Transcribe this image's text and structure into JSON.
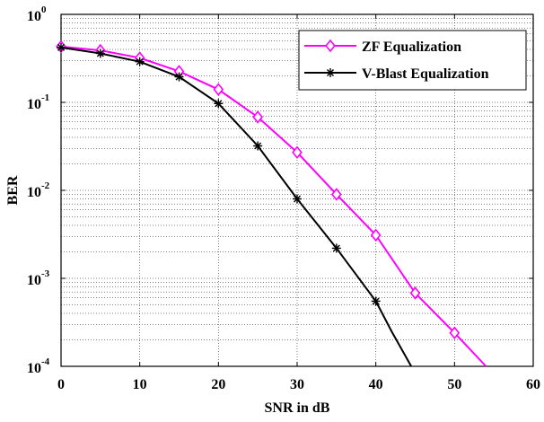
{
  "chart_data": {
    "type": "line",
    "title": "",
    "xlabel": "SNR in dB",
    "ylabel": "BER",
    "xlim": [
      0,
      60
    ],
    "ylim": [
      0.0001,
      1
    ],
    "yscale": "log",
    "grid": true,
    "legend_position": "top-right",
    "x_ticks": [
      "0",
      "10",
      "20",
      "30",
      "40",
      "50",
      "60"
    ],
    "y_ticks": [
      {
        "base": "10",
        "exp": "0"
      },
      {
        "base": "10",
        "exp": "-1"
      },
      {
        "base": "10",
        "exp": "-2"
      },
      {
        "base": "10",
        "exp": "-3"
      },
      {
        "base": "10",
        "exp": "-4"
      }
    ],
    "series": [
      {
        "name": "ZF Equalization",
        "color": "#ff00ff",
        "marker": "diamond",
        "x": [
          0,
          5,
          10,
          15,
          20,
          25,
          30,
          35,
          40,
          45,
          50,
          54
        ],
        "y": [
          0.43,
          0.39,
          0.32,
          0.225,
          0.14,
          0.068,
          0.027,
          0.009,
          0.0031,
          0.00068,
          0.00024,
          0.0001
        ]
      },
      {
        "name": "V-Blast Equalization",
        "color": "#000000",
        "marker": "star",
        "x": [
          0,
          5,
          10,
          15,
          20,
          25,
          30,
          35,
          40,
          42,
          44.5
        ],
        "y": [
          0.42,
          0.36,
          0.29,
          0.195,
          0.097,
          0.032,
          0.008,
          0.0022,
          0.00055,
          0.00025,
          0.0001
        ]
      }
    ]
  }
}
